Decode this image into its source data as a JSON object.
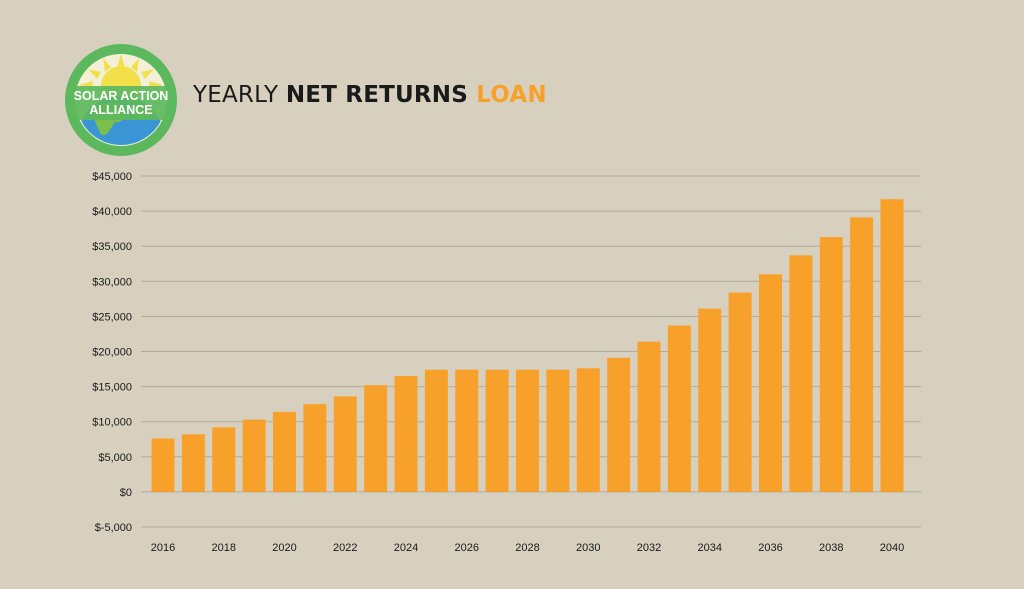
{
  "logo": {
    "line1": "SOLAR ACTION",
    "line2": "ALLIANCE",
    "ring_color": "#5cb85c",
    "sun_color": "#f2e04a",
    "earth_color": "#3a95d4"
  },
  "title": {
    "part1": "YEARLY ",
    "part2": "NET RETURNS",
    "part3": " LOAN"
  },
  "chart_data": {
    "type": "bar",
    "categories": [
      "2016",
      "2017",
      "2018",
      "2019",
      "2020",
      "2021",
      "2022",
      "2023",
      "2024",
      "2025",
      "2026",
      "2027",
      "2028",
      "2029",
      "2030",
      "2031",
      "2032",
      "2033",
      "2034",
      "2035",
      "2036",
      "2037",
      "2038",
      "2039",
      "2040"
    ],
    "x_tick_labels": [
      "2016",
      "2018",
      "2020",
      "2022",
      "2024",
      "2026",
      "2028",
      "2030",
      "2032",
      "2034",
      "2036",
      "2038",
      "2040"
    ],
    "values": [
      7600,
      8200,
      9200,
      10300,
      11400,
      12500,
      13600,
      15200,
      16500,
      17400,
      17400,
      17400,
      17400,
      17400,
      17600,
      19100,
      21400,
      23700,
      26100,
      28400,
      31000,
      33700,
      36300,
      39100,
      41700
    ],
    "y_ticks": [
      -5000,
      0,
      5000,
      10000,
      15000,
      20000,
      25000,
      30000,
      35000,
      40000,
      45000
    ],
    "y_tick_labels": [
      "$-5,000",
      "$0",
      "$5,000",
      "$10,000",
      "$15,000",
      "$20,000",
      "$25,000",
      "$30,000",
      "$35,000",
      "$40,000",
      "$45,000"
    ],
    "ylim": [
      -5000,
      45000
    ],
    "grid": true,
    "bar_color": "#f7a12b",
    "grid_color": "#b3ab99"
  }
}
